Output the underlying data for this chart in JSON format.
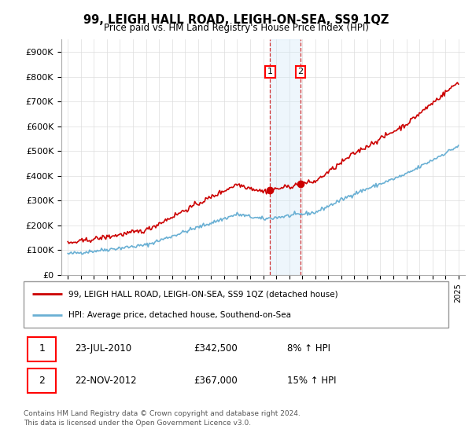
{
  "title": "99, LEIGH HALL ROAD, LEIGH-ON-SEA, SS9 1QZ",
  "subtitle": "Price paid vs. HM Land Registry's House Price Index (HPI)",
  "ylabel_ticks": [
    "£0",
    "£100K",
    "£200K",
    "£300K",
    "£400K",
    "£500K",
    "£600K",
    "£700K",
    "£800K",
    "£900K"
  ],
  "ytick_values": [
    0,
    100000,
    200000,
    300000,
    400000,
    500000,
    600000,
    700000,
    800000,
    900000
  ],
  "ylim": [
    0,
    950000
  ],
  "hpi_color": "#6ab0d4",
  "price_color": "#cc0000",
  "shade_color": "#d0e8f8",
  "transaction1_year": 2010.542,
  "transaction1_price": 342500,
  "transaction2_year": 2012.875,
  "transaction2_price": 367000,
  "legend_price_label": "99, LEIGH HALL ROAD, LEIGH-ON-SEA, SS9 1QZ (detached house)",
  "legend_hpi_label": "HPI: Average price, detached house, Southend-on-Sea",
  "table_rows": [
    {
      "num": "1",
      "date": "23-JUL-2010",
      "price": "£342,500",
      "hpi": "8% ↑ HPI"
    },
    {
      "num": "2",
      "date": "22-NOV-2012",
      "price": "£367,000",
      "hpi": "15% ↑ HPI"
    }
  ],
  "footer": "Contains HM Land Registry data © Crown copyright and database right 2024.\nThis data is licensed under the Open Government Licence v3.0.",
  "grid_color": "#dddddd"
}
